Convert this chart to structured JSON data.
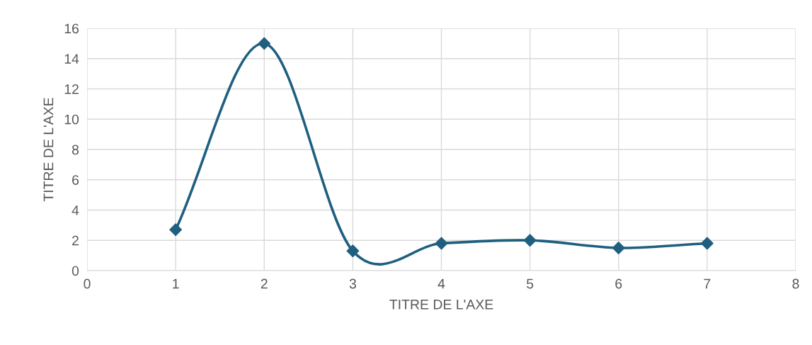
{
  "chart_data": {
    "type": "line",
    "xlabel": "TITRE DE L'AXE",
    "ylabel": "TITRE DE L'AXE",
    "x": [
      1,
      2,
      3,
      4,
      5,
      6,
      7
    ],
    "series": [
      {
        "color": "#1f5f80",
        "values": [
          2.7,
          15.0,
          1.3,
          1.8,
          2.0,
          1.5,
          1.8
        ]
      }
    ],
    "xlim": [
      0,
      8
    ],
    "xticks": [
      0,
      1,
      2,
      3,
      4,
      5,
      6,
      7,
      8
    ],
    "ylim": [
      0,
      16
    ],
    "yticks": [
      0,
      2,
      4,
      6,
      8,
      10,
      12,
      14,
      16
    ],
    "grid": true,
    "marker": "diamond",
    "line_style": "solid",
    "legend": false
  }
}
